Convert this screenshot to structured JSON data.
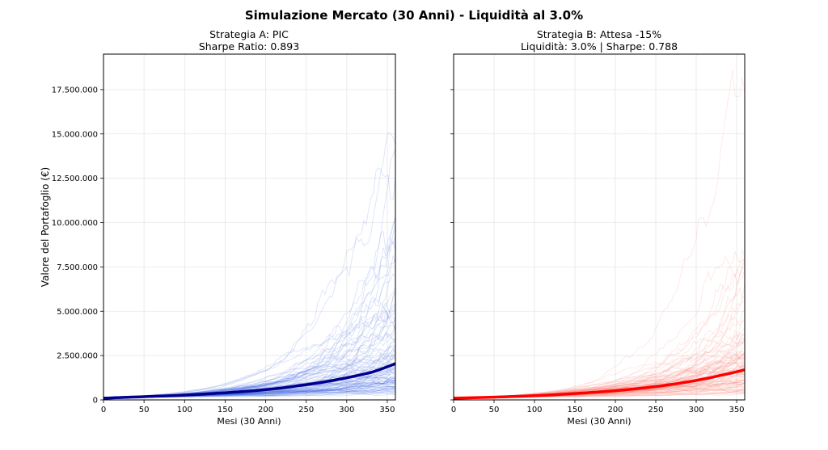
{
  "figure": {
    "suptitle": "Simulazione Mercato (30 Anni) - Liquidità al 3.0%"
  },
  "chart_data": [
    {
      "type": "line",
      "title_line1": "Strategia A: PIC",
      "title_line2": "Sharpe Ratio: 0.893",
      "xlabel": "Mesi (30 Anni)",
      "ylabel": "Valore del Portafoglio (€)",
      "xlim": [
        0,
        360
      ],
      "ylim": [
        0,
        19500000
      ],
      "xticks": [
        0,
        50,
        100,
        150,
        200,
        250,
        300,
        350
      ],
      "xtick_labels": [
        "0",
        "50",
        "100",
        "150",
        "200",
        "250",
        "300",
        "350"
      ],
      "yticks": [
        0,
        2500000,
        5000000,
        7500000,
        10000000,
        12500000,
        15000000,
        17500000
      ],
      "ytick_labels": [
        "0",
        "2.500.000",
        "5.000.000",
        "7.500.000",
        "10.000.000",
        "12.500.000",
        "15.000.000",
        "17.500.000"
      ],
      "grid": true,
      "colors": {
        "paths": "#4169e1",
        "median": "#00008b"
      },
      "median_series": {
        "x": [
          0,
          30,
          60,
          90,
          120,
          150,
          180,
          210,
          240,
          270,
          300,
          330,
          360
        ],
        "y": [
          100000,
          150000,
          200000,
          250000,
          320000,
          400000,
          500000,
          620000,
          800000,
          1000000,
          1250000,
          1550000,
          2050000
        ]
      },
      "simulated_paths": {
        "count": 100,
        "final_max": 15500000,
        "seed": 7
      }
    },
    {
      "type": "line",
      "title_line1": "Strategia B: Attesa -15%",
      "title_line2": "Liquidità: 3.0% | Sharpe: 0.788",
      "xlabel": "Mesi (30 Anni)",
      "ylabel": "",
      "xlim": [
        0,
        360
      ],
      "ylim": [
        0,
        19500000
      ],
      "xticks": [
        0,
        50,
        100,
        150,
        200,
        250,
        300,
        350
      ],
      "xtick_labels": [
        "0",
        "50",
        "100",
        "150",
        "200",
        "250",
        "300",
        "350"
      ],
      "yticks": [
        0,
        2500000,
        5000000,
        7500000,
        10000000,
        12500000,
        15000000,
        17500000
      ],
      "ytick_labels": [],
      "grid": true,
      "colors": {
        "paths": "#fa8072",
        "median": "#ff0000"
      },
      "median_series": {
        "x": [
          0,
          30,
          60,
          90,
          120,
          150,
          180,
          210,
          240,
          270,
          300,
          330,
          360
        ],
        "y": [
          100000,
          130000,
          170000,
          220000,
          280000,
          360000,
          450000,
          560000,
          700000,
          880000,
          1100000,
          1380000,
          1700000
        ]
      },
      "simulated_paths": {
        "count": 100,
        "final_max": 18800000,
        "seed": 13
      }
    }
  ]
}
